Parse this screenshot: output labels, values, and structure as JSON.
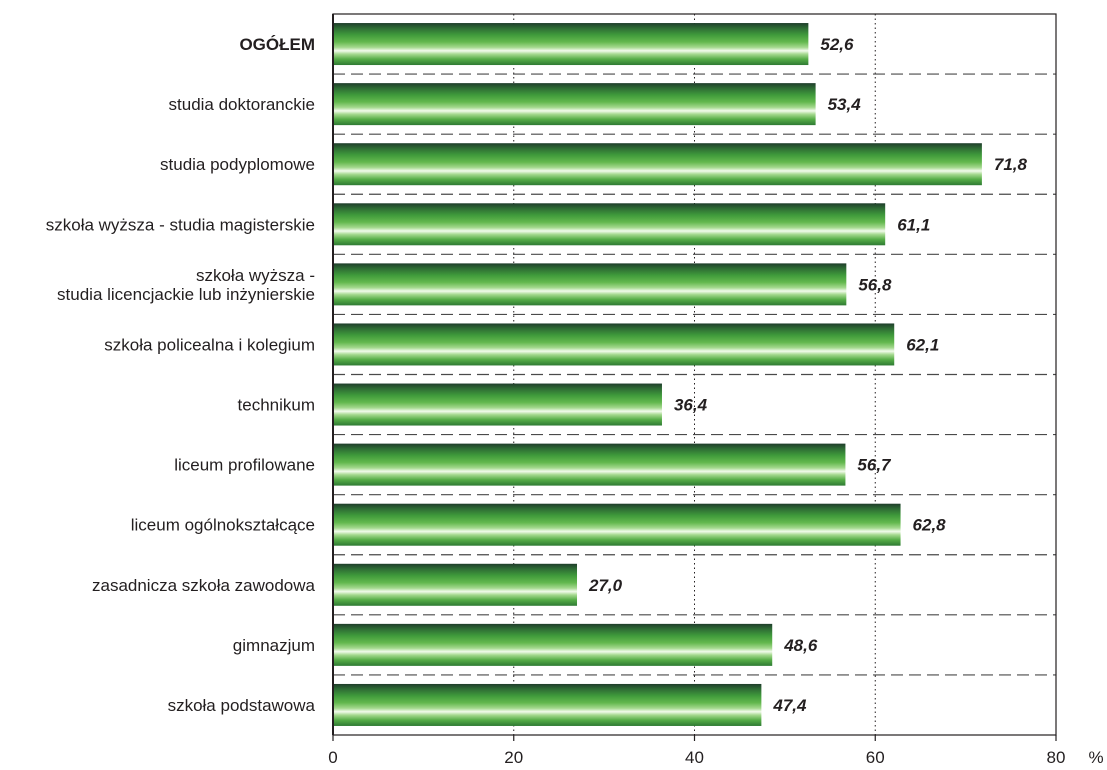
{
  "chart_data": {
    "type": "bar",
    "orientation": "horizontal",
    "categories": [
      [
        "OGÓŁEM"
      ],
      [
        "studia doktoranckie"
      ],
      [
        "studia podyplomowe"
      ],
      [
        "szkoła wyższa - studia magisterskie"
      ],
      [
        "szkoła wyższa -",
        "studia licencjackie lub inżynierskie"
      ],
      [
        "szkoła policealna i kolegium"
      ],
      [
        "technikum"
      ],
      [
        "liceum profilowane"
      ],
      [
        "liceum ogólnokształcące"
      ],
      [
        "zasadnicza szkoła zawodowa"
      ],
      [
        "gimnazjum"
      ],
      [
        "szkoła podstawowa"
      ]
    ],
    "bold_categories": [
      0
    ],
    "values": [
      52.6,
      53.4,
      71.8,
      61.1,
      56.8,
      62.1,
      36.4,
      56.7,
      62.8,
      27.0,
      48.6,
      47.4
    ],
    "value_labels": [
      "52,6",
      "53,4",
      "71,8",
      "61,1",
      "56,8",
      "62,1",
      "36,4",
      "56,7",
      "62,8",
      "27,0",
      "48,6",
      "47,4"
    ],
    "xlim": [
      0,
      80
    ],
    "xticks": [
      0,
      20,
      40,
      60,
      80
    ],
    "xtick_labels": [
      "0",
      "20",
      "40",
      "60",
      "80"
    ],
    "unit_label": "%",
    "vertical_grid": "dotted",
    "row_separators": "dashed",
    "colors": {
      "bar_dark": "#1f3d2b",
      "bar_mid": "#3e9c3a",
      "bar_light": "#eaf7e2",
      "text": "#231f20",
      "axis": "#231f20"
    }
  }
}
